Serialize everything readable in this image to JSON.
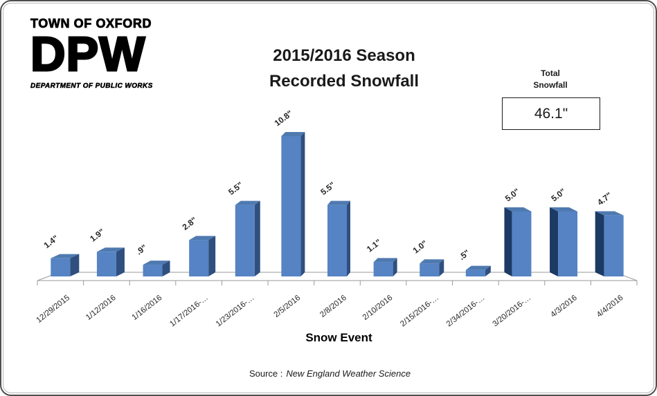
{
  "logo": {
    "town": "TOWN OF OXFORD",
    "acronym": "DPW",
    "department": "DEPARTMENT OF PUBLIC WORKS"
  },
  "title": {
    "line1": "2015/2016 Season",
    "line2": "Recorded Snowfall"
  },
  "total": {
    "label_line1": "Total",
    "label_line2": "Snowfall",
    "value": "46.1\""
  },
  "xaxis": {
    "title": "Snow Event"
  },
  "source": {
    "prefix": "Source :",
    "text": "New England Weather Science"
  },
  "chart_data": {
    "type": "bar",
    "style": "3d-column",
    "title": "2015/2016 Season Recorded Snowfall",
    "xlabel": "Snow Event",
    "ylabel": "",
    "y_axis_visible": false,
    "grid": false,
    "legend": "none",
    "categories": [
      "12/29/2015",
      "1/12/2016",
      "1/16/2016",
      "1/17/2016-…",
      "1/23/2016-…",
      "2/5/2016",
      "2/8/2016",
      "2/10/2016",
      "2/15/2016-…",
      "2/34/2016-…",
      "3/20/2016-…",
      "4/3/2016",
      "4/4/2016"
    ],
    "values": [
      1.4,
      1.9,
      0.9,
      2.8,
      5.5,
      10.8,
      5.5,
      1.1,
      1.0,
      0.5,
      5.0,
      5.0,
      4.7
    ],
    "data_labels": [
      "1.4\"",
      "1.9\"",
      ".9\"",
      "2.8\"",
      "5.5\"",
      "10.8\"",
      "5.5\"",
      "1.1\"",
      "1.0\"",
      ".5\"",
      "5.0\"",
      "5.0\"",
      "4.7\""
    ],
    "total_snowfall": "46.1\"",
    "bar_color": "#5583C4",
    "bar_top_color": "#4F7AB0",
    "bar_side_color": "#2F4F7E",
    "bar_side_color_dark": "#1C3A63",
    "axis_color": "#9a9a9a",
    "label_color": "#262626"
  }
}
